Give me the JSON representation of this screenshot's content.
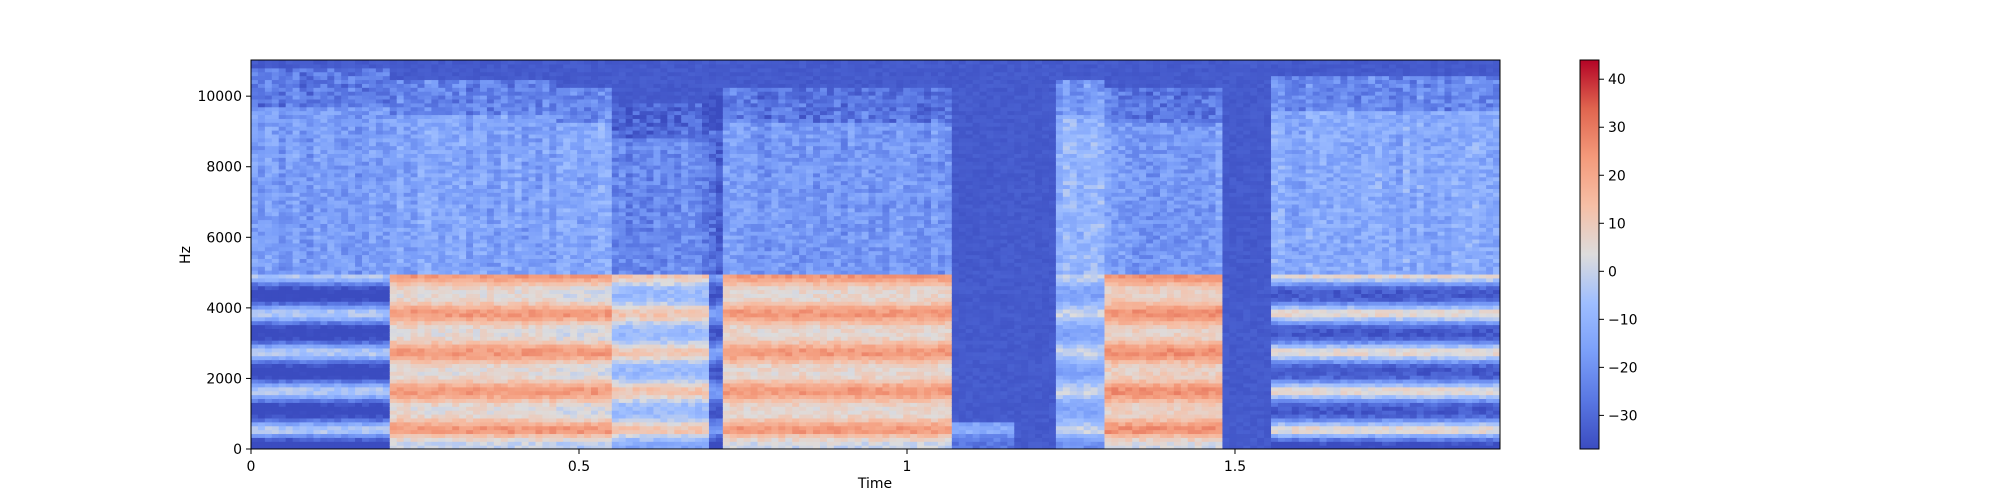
{
  "chart_data": {
    "type": "heatmap",
    "title": "",
    "xlabel": "Time",
    "ylabel": "Hz",
    "xlim": [
      0,
      1.904
    ],
    "ylim": [
      0,
      11025
    ],
    "x_ticks": [
      0,
      0.5,
      1,
      1.5
    ],
    "x_tick_labels": [
      "0",
      "0.5",
      "1",
      "1.5"
    ],
    "y_ticks": [
      0,
      2000,
      4000,
      6000,
      8000,
      10000
    ],
    "y_tick_labels": [
      "0",
      "2000",
      "4000",
      "6000",
      "8000",
      "10000"
    ],
    "colormap": "coolwarm",
    "colorbar": {
      "vmin": -37,
      "vmax": 44,
      "ticks": [
        -30,
        -20,
        -10,
        0,
        10,
        20,
        30,
        40
      ],
      "tick_labels": [
        "−30",
        "−20",
        "−10",
        "0",
        "10",
        "20",
        "30",
        "40"
      ]
    },
    "grid": false,
    "segments": [
      {
        "t0": 0.0,
        "t1": 0.21,
        "f_max": 10800,
        "level_db": -17,
        "peak_db": -3,
        "low_band_db": -30
      },
      {
        "t0": 0.21,
        "t1": 0.47,
        "f_max": 10500,
        "level_db": -15,
        "peak_db": 24,
        "low_band_db": 15
      },
      {
        "t0": 0.47,
        "t1": 0.55,
        "f_max": 10300,
        "level_db": -14,
        "peak_db": 24,
        "low_band_db": 12
      },
      {
        "t0": 0.55,
        "t1": 0.7,
        "f_max": 9800,
        "level_db": -22,
        "peak_db": 12,
        "low_band_db": 2
      },
      {
        "t0": 0.7,
        "t1": 0.72,
        "f_max": 10000,
        "level_db": -30,
        "peak_db": -15,
        "low_band_db": -25
      },
      {
        "t0": 0.72,
        "t1": 1.07,
        "f_max": 10300,
        "level_db": -18,
        "peak_db": 24,
        "low_band_db": 16
      },
      {
        "t0": 1.07,
        "t1": 1.16,
        "f_max": 800,
        "level_db": -22,
        "peak_db": -12,
        "low_band_db": -12
      },
      {
        "t0": 1.16,
        "t1": 1.23,
        "f_max": 0,
        "level_db": -37,
        "peak_db": -37,
        "low_band_db": -37
      },
      {
        "t0": 1.23,
        "t1": 1.3,
        "f_max": 10500,
        "level_db": -10,
        "peak_db": 0,
        "low_band_db": -5
      },
      {
        "t0": 1.3,
        "t1": 1.48,
        "f_max": 10300,
        "level_db": -17,
        "peak_db": 26,
        "low_band_db": 18
      },
      {
        "t0": 1.48,
        "t1": 1.55,
        "f_max": 0,
        "level_db": -37,
        "peak_db": -37,
        "low_band_db": -37
      },
      {
        "t0": 1.55,
        "t1": 1.904,
        "f_max": 10600,
        "level_db": -13,
        "peak_db": 6,
        "low_band_db": -24
      }
    ]
  }
}
